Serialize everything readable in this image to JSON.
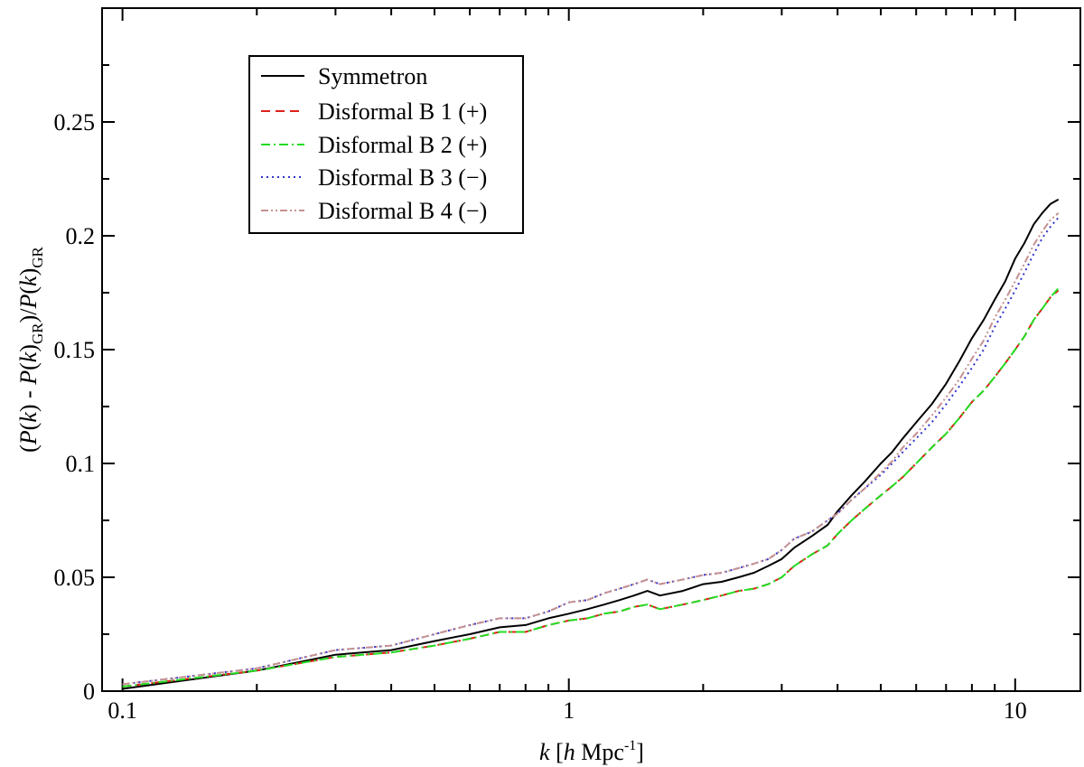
{
  "chart_data": {
    "type": "line",
    "xscale": "log",
    "xlim": [
      0.09,
      14
    ],
    "ylim": [
      0,
      0.3
    ],
    "grid": false,
    "legend_position": "top-left",
    "xticks": [
      {
        "value": 0.1,
        "label": "0.1"
      },
      {
        "value": 1,
        "label": "1"
      },
      {
        "value": 10,
        "label": "10"
      }
    ],
    "yticks": [
      {
        "value": 0,
        "label": "0"
      },
      {
        "value": 0.05,
        "label": "0.05"
      },
      {
        "value": 0.1,
        "label": "0.1"
      },
      {
        "value": 0.15,
        "label": "0.15"
      },
      {
        "value": 0.2,
        "label": "0.2"
      },
      {
        "value": 0.25,
        "label": "0.25"
      }
    ],
    "xlabel": {
      "k": "k",
      "open": " [",
      "h": "h",
      "unit": "  Mpc",
      "exp": "-1",
      "close": "]"
    },
    "ylabel": {
      "p1": "(",
      "P1": "P",
      "p2": "(",
      "k1": "k",
      "p3": ") - ",
      "P2": "P",
      "p4": "(",
      "k2": "k",
      "p5": ")",
      "sub1": "GR",
      "p6": ")/",
      "P3": "P",
      "p7": "(",
      "k3": "k",
      "p8": ")",
      "sub2": "GR"
    },
    "series": [
      {
        "name": "Symmetron",
        "color": "#000000",
        "dash": "solid",
        "x": [
          0.1,
          0.2,
          0.3,
          0.4,
          0.5,
          0.6,
          0.7,
          0.8,
          0.9,
          1.0,
          1.1,
          1.2,
          1.3,
          1.4,
          1.5,
          1.6,
          1.8,
          2.0,
          2.2,
          2.4,
          2.6,
          2.8,
          3.0,
          3.2,
          3.5,
          3.8,
          4.0,
          4.3,
          4.6,
          5.0,
          5.3,
          5.6,
          6.0,
          6.5,
          7.0,
          7.5,
          8.0,
          8.5,
          9.0,
          9.5,
          10.0,
          10.5,
          11.0,
          11.5,
          12.0,
          12.5
        ],
        "y": [
          0.001,
          0.009,
          0.016,
          0.018,
          0.022,
          0.025,
          0.028,
          0.029,
          0.032,
          0.034,
          0.036,
          0.038,
          0.04,
          0.042,
          0.044,
          0.042,
          0.044,
          0.047,
          0.048,
          0.05,
          0.052,
          0.055,
          0.058,
          0.063,
          0.068,
          0.073,
          0.079,
          0.086,
          0.092,
          0.1,
          0.105,
          0.111,
          0.118,
          0.126,
          0.135,
          0.145,
          0.155,
          0.163,
          0.172,
          0.18,
          0.19,
          0.197,
          0.205,
          0.21,
          0.214,
          0.216
        ]
      },
      {
        "name": "Disformal B 1 (+)",
        "color": "#e0201a",
        "dash": "dashed",
        "x": [
          0.1,
          0.2,
          0.3,
          0.4,
          0.5,
          0.6,
          0.7,
          0.8,
          0.9,
          1.0,
          1.1,
          1.2,
          1.3,
          1.4,
          1.5,
          1.6,
          1.8,
          2.0,
          2.2,
          2.4,
          2.6,
          2.8,
          3.0,
          3.2,
          3.5,
          3.8,
          4.0,
          4.3,
          4.6,
          5.0,
          5.3,
          5.6,
          6.0,
          6.5,
          7.0,
          7.5,
          8.0,
          8.5,
          9.0,
          9.5,
          10.0,
          10.5,
          11.0,
          11.5,
          12.0,
          12.5
        ],
        "y": [
          0.002,
          0.009,
          0.015,
          0.017,
          0.02,
          0.023,
          0.026,
          0.026,
          0.029,
          0.031,
          0.032,
          0.034,
          0.035,
          0.037,
          0.038,
          0.036,
          0.038,
          0.04,
          0.042,
          0.044,
          0.045,
          0.047,
          0.05,
          0.055,
          0.06,
          0.064,
          0.069,
          0.075,
          0.08,
          0.086,
          0.09,
          0.094,
          0.1,
          0.107,
          0.113,
          0.12,
          0.127,
          0.132,
          0.138,
          0.144,
          0.15,
          0.156,
          0.163,
          0.168,
          0.173,
          0.176
        ]
      },
      {
        "name": "Disformal B 2 (+)",
        "color": "#22dd22",
        "dash": "dashdot",
        "x": [
          0.1,
          0.2,
          0.3,
          0.4,
          0.5,
          0.6,
          0.7,
          0.8,
          0.9,
          1.0,
          1.1,
          1.2,
          1.3,
          1.4,
          1.5,
          1.6,
          1.8,
          2.0,
          2.2,
          2.4,
          2.6,
          2.8,
          3.0,
          3.2,
          3.5,
          3.8,
          4.0,
          4.3,
          4.6,
          5.0,
          5.3,
          5.6,
          6.0,
          6.5,
          7.0,
          7.5,
          8.0,
          8.5,
          9.0,
          9.5,
          10.0,
          10.5,
          11.0,
          11.5,
          12.0,
          12.5
        ],
        "y": [
          0.002,
          0.009,
          0.015,
          0.017,
          0.02,
          0.023,
          0.026,
          0.026,
          0.029,
          0.031,
          0.032,
          0.034,
          0.035,
          0.037,
          0.038,
          0.036,
          0.038,
          0.04,
          0.042,
          0.044,
          0.045,
          0.047,
          0.05,
          0.055,
          0.06,
          0.064,
          0.069,
          0.075,
          0.08,
          0.086,
          0.09,
          0.094,
          0.1,
          0.107,
          0.113,
          0.12,
          0.127,
          0.132,
          0.138,
          0.144,
          0.15,
          0.156,
          0.163,
          0.168,
          0.173,
          0.177
        ]
      },
      {
        "name": "Disformal B 3 (−)",
        "color": "#3333cc",
        "dash": "dotted",
        "x": [
          0.1,
          0.2,
          0.3,
          0.4,
          0.5,
          0.6,
          0.7,
          0.8,
          0.9,
          1.0,
          1.1,
          1.2,
          1.3,
          1.4,
          1.5,
          1.6,
          1.8,
          2.0,
          2.2,
          2.4,
          2.6,
          2.8,
          3.0,
          3.2,
          3.5,
          3.8,
          4.0,
          4.3,
          4.6,
          5.0,
          5.3,
          5.6,
          6.0,
          6.5,
          7.0,
          7.5,
          8.0,
          8.5,
          9.0,
          9.5,
          10.0,
          10.5,
          11.0,
          11.5,
          12.0,
          12.5
        ],
        "y": [
          0.003,
          0.01,
          0.018,
          0.02,
          0.025,
          0.029,
          0.032,
          0.032,
          0.035,
          0.039,
          0.04,
          0.043,
          0.045,
          0.047,
          0.049,
          0.047,
          0.049,
          0.051,
          0.052,
          0.054,
          0.056,
          0.058,
          0.062,
          0.067,
          0.07,
          0.075,
          0.078,
          0.084,
          0.089,
          0.095,
          0.1,
          0.105,
          0.111,
          0.118,
          0.126,
          0.134,
          0.142,
          0.15,
          0.16,
          0.168,
          0.176,
          0.184,
          0.192,
          0.199,
          0.204,
          0.208
        ]
      },
      {
        "name": "Disformal B 4 (−)",
        "color": "#c49090",
        "dash": "dashdotdot",
        "x": [
          0.1,
          0.2,
          0.3,
          0.4,
          0.5,
          0.6,
          0.7,
          0.8,
          0.9,
          1.0,
          1.1,
          1.2,
          1.3,
          1.4,
          1.5,
          1.6,
          1.8,
          2.0,
          2.2,
          2.4,
          2.6,
          2.8,
          3.0,
          3.2,
          3.5,
          3.8,
          4.0,
          4.3,
          4.6,
          5.0,
          5.3,
          5.6,
          6.0,
          6.5,
          7.0,
          7.5,
          8.0,
          8.5,
          9.0,
          9.5,
          10.0,
          10.5,
          11.0,
          11.5,
          12.0,
          12.5
        ],
        "y": [
          0.003,
          0.01,
          0.018,
          0.02,
          0.025,
          0.029,
          0.032,
          0.032,
          0.035,
          0.039,
          0.04,
          0.043,
          0.045,
          0.047,
          0.049,
          0.047,
          0.049,
          0.051,
          0.052,
          0.054,
          0.056,
          0.058,
          0.062,
          0.067,
          0.07,
          0.075,
          0.078,
          0.084,
          0.089,
          0.096,
          0.101,
          0.107,
          0.113,
          0.121,
          0.129,
          0.137,
          0.146,
          0.154,
          0.164,
          0.172,
          0.18,
          0.188,
          0.196,
          0.202,
          0.207,
          0.21
        ]
      }
    ]
  }
}
